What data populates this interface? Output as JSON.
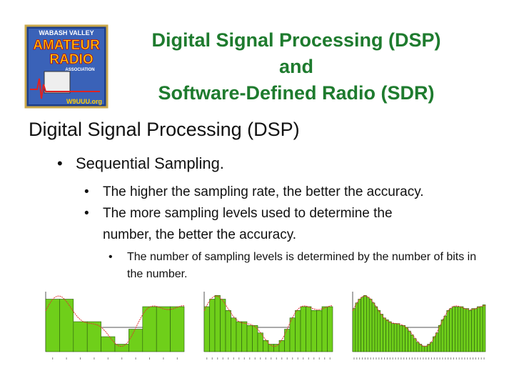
{
  "logo": {
    "line1": "WABASH VALLEY",
    "line2": "AMATEUR",
    "line3": "RADIO",
    "line4": "ASSOCIATION",
    "callsign": "W9UUU.org"
  },
  "title": {
    "lines": [
      "Digital Signal Processing (DSP)",
      "and",
      "Software-Defined Radio (SDR)"
    ]
  },
  "heading": "Digital Signal Processing (DSP)",
  "bullets": [
    {
      "text": "Sequential Sampling.",
      "children": [
        {
          "text": "The higher the sampling rate, the better the accuracy."
        },
        {
          "text": "The more sampling levels used to determine the number, the better the accuracy.",
          "children": [
            {
              "text": "The number of sampling levels is determined by the number of bits in the number."
            }
          ]
        }
      ]
    }
  ]
}
